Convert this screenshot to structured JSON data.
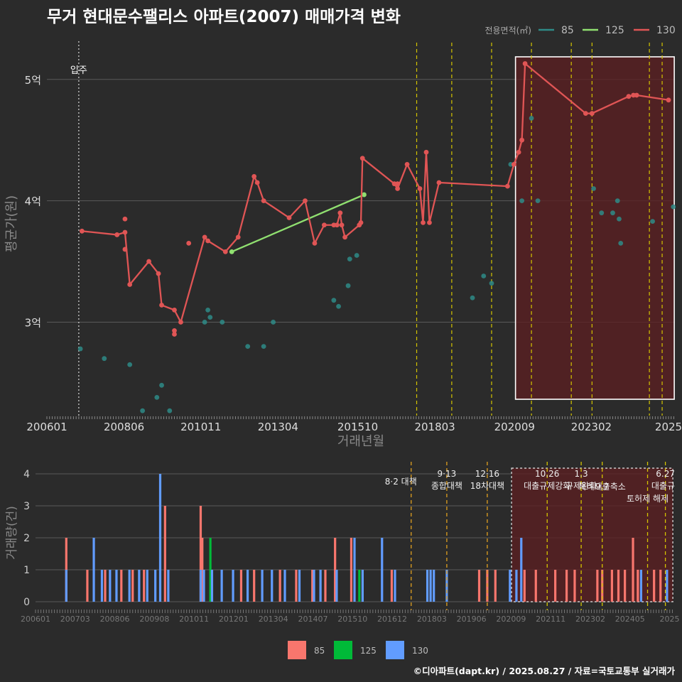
{
  "title": "무거 현대문수팰리스 아파트(2007) 매매가격 변화",
  "credit": "©디아파트(dapt.kr) / 2025.08.27 / 자료=국토교통부 실거래가",
  "colors": {
    "bg": "#2b2b2b",
    "grid": "#555555",
    "text": "#dddddd",
    "s85": "#2e8b87",
    "s125": "#90e070",
    "s130": "#e05555",
    "bar85": "#f8766d",
    "bar125": "#00ba38",
    "bar130": "#619cff",
    "policy": "#d4c400",
    "policy_lower": "#e0a020",
    "highlight": "#5a1f22"
  },
  "chart_data": [
    {
      "type": "line",
      "ylabel": "평균가(원)",
      "xlabel": "거래년월",
      "y_ticks": [
        {
          "value": 3,
          "label": "3억"
        },
        {
          "value": 4,
          "label": "4억"
        },
        {
          "value": 5,
          "label": "5억"
        }
      ],
      "ylim": [
        2.23,
        5.42
      ],
      "xlim": [
        2006.0,
        2025.7
      ],
      "x_ticks": [
        {
          "value": 2006.0,
          "label": "200601"
        },
        {
          "value": 2008.42,
          "label": "200806"
        },
        {
          "value": 2010.83,
          "label": "201011"
        },
        {
          "value": 2013.25,
          "label": "201304"
        },
        {
          "value": 2015.75,
          "label": "201510"
        },
        {
          "value": 2018.17,
          "label": "201803"
        },
        {
          "value": 2020.67,
          "label": "202009"
        },
        {
          "value": 2023.08,
          "label": "202302"
        },
        {
          "value": 2025.5,
          "label": "2025"
        }
      ],
      "legend": {
        "title": "전용면적(㎡)",
        "position": "top-right",
        "items": [
          {
            "name": "85",
            "color": "#2e8b87"
          },
          {
            "name": "125",
            "color": "#90e070"
          },
          {
            "name": "130",
            "color": "#e05555"
          }
        ]
      },
      "annotation": {
        "label": "입주",
        "x": 2007.0
      },
      "policy_lines": [
        2017.6,
        2018.7,
        2019.95,
        2021.2,
        2022.45,
        2023.1,
        2024.9,
        2025.3
      ],
      "highlight_range": [
        2020.7,
        2025.68
      ],
      "series": [
        {
          "name": "85",
          "mode": "markers",
          "color": "#2e8b87",
          "x": [
            2007.05,
            2007.8,
            2008.6,
            2009.0,
            2009.45,
            2009.6,
            2009.85,
            2010.95,
            2011.05,
            2011.12,
            2011.5,
            2012.3,
            2012.8,
            2013.1,
            2015.0,
            2015.15,
            2015.45,
            2015.5,
            2015.72,
            2020.55,
            2020.9,
            2019.35,
            2019.7,
            2019.95,
            2021.2,
            2021.4,
            2023.15,
            2023.4,
            2023.75,
            2023.9,
            2023.95,
            2024.0,
            2025.0,
            2025.65
          ],
          "y": [
            2.78,
            2.7,
            2.65,
            2.27,
            2.38,
            2.48,
            2.27,
            3.0,
            3.1,
            3.04,
            3.0,
            2.8,
            2.8,
            3.0,
            3.18,
            3.13,
            3.3,
            3.52,
            3.55,
            4.3,
            4.0,
            3.2,
            3.38,
            3.32,
            4.68,
            4.0,
            4.1,
            3.9,
            3.9,
            4.0,
            3.85,
            3.65,
            3.83,
            3.95
          ]
        },
        {
          "name": "125",
          "mode": "lines+markers",
          "color": "#90e070",
          "x": [
            2011.8,
            2015.95
          ],
          "y": [
            3.58,
            4.05
          ]
        },
        {
          "name": "130",
          "mode": "lines+markers",
          "color": "#e05555",
          "x": [
            2007.1,
            2008.2,
            2008.45,
            2008.6,
            2009.2,
            2009.5,
            2009.6,
            2010.0,
            2010.2,
            2010.95,
            2011.05,
            2011.6,
            2012.0,
            2012.5,
            2012.6,
            2012.8,
            2013.6,
            2014.1,
            2014.4,
            2014.7,
            2015.0,
            2015.1,
            2015.2,
            2015.25,
            2015.35,
            2015.8,
            2015.85,
            2015.9,
            2016.9,
            2017.0,
            2017.3,
            2017.7,
            2017.8,
            2017.9,
            2018.0,
            2018.3,
            2020.45,
            2020.65,
            2020.8,
            2020.9,
            2021.0,
            2022.9,
            2023.1,
            2024.25,
            2024.4,
            2024.5,
            2025.5
          ],
          "y": [
            3.75,
            3.72,
            3.74,
            3.31,
            3.5,
            3.4,
            3.14,
            3.1,
            3.0,
            3.7,
            3.67,
            3.58,
            3.7,
            4.2,
            4.15,
            4.0,
            3.86,
            4.0,
            3.65,
            3.8,
            3.8,
            3.8,
            3.9,
            3.8,
            3.7,
            3.8,
            3.82,
            4.35,
            4.14,
            4.1,
            4.3,
            4.1,
            3.82,
            4.4,
            3.82,
            4.15,
            4.12,
            4.3,
            4.4,
            4.5,
            5.13,
            4.72,
            4.72,
            4.86,
            4.87,
            4.87,
            4.83
          ]
        },
        {
          "name": "130b",
          "mode": "markers",
          "color": "#e05555",
          "x": [
            2008.45,
            2008.45,
            2010.0,
            2010.0,
            2010.45,
            2017.0
          ],
          "y": [
            3.85,
            3.6,
            2.9,
            2.93,
            3.65,
            4.14
          ]
        }
      ]
    },
    {
      "type": "bar",
      "ylabel": "거래량(건)",
      "ylim": [
        0,
        4.2
      ],
      "y_ticks": [
        0,
        1,
        2,
        3,
        4
      ],
      "legend": {
        "position": "bottom",
        "items": [
          {
            "name": "85",
            "color": "#f8766d"
          },
          {
            "name": "125",
            "color": "#00ba38"
          },
          {
            "name": "130",
            "color": "#619cff"
          }
        ]
      },
      "x_ticks": [
        "200601",
        "200703",
        "200806",
        "200908",
        "201011",
        "201201",
        "201304",
        "201407",
        "201510",
        "201612",
        "201803",
        "201906",
        "202009",
        "202111",
        "202302",
        "202405",
        "2025"
      ],
      "policies": [
        {
          "x": 2017.6,
          "lines": [
            "8·2 대책"
          ],
          "color": "#e0a020"
        },
        {
          "x": 2018.7,
          "lines": [
            "9·13",
            "종합대책"
          ],
          "color": "#e0a020"
        },
        {
          "x": 2019.95,
          "lines": [
            "12·16",
            "18차대책"
          ],
          "color": "#e0a020"
        },
        {
          "x": 2021.8,
          "lines": [
            "10.26",
            "대출규제강화"
          ],
          "color": "#d4c400"
        },
        {
          "x": 2022.85,
          "lines": [
            "1.3",
            "규제완화"
          ],
          "color": "#d4c400"
        },
        {
          "x": 2023.5,
          "lines": [
            "9.7",
            "특례대출축소"
          ],
          "color": "#d4c400"
        },
        {
          "x": 2024.9,
          "lines": [
            "토허제 해제"
          ],
          "color": "#d4c400"
        },
        {
          "x": 2025.45,
          "lines": [
            "6.27",
            "대출규"
          ],
          "color": "#d4c400"
        }
      ],
      "highlight_range": [
        2020.7,
        2025.68
      ],
      "series": [
        {
          "name": "85",
          "color": "#f8766d",
          "x": [
            2006.95,
            2007.6,
            2008.15,
            2008.65,
            2009.0,
            2009.35,
            2010.0,
            2011.1,
            2011.15,
            2012.35,
            2012.75,
            2013.55,
            2014.05,
            2014.55,
            2014.95,
            2015.25,
            2015.75,
            2017.0,
            2019.7,
            2019.95,
            2020.2,
            2021.1,
            2021.45,
            2022.05,
            2022.4,
            2022.65,
            2023.35,
            2023.5,
            2023.8,
            2024.0,
            2024.2,
            2024.45,
            2024.6,
            2025.1,
            2025.3
          ],
          "v": [
            2,
            1,
            1,
            1,
            1,
            1,
            3,
            3,
            2,
            1,
            1,
            1,
            1,
            1,
            1,
            2,
            2,
            1,
            1,
            1,
            1,
            1,
            1,
            1,
            1,
            1,
            1,
            1,
            1,
            1,
            1,
            2,
            1,
            1,
            1
          ]
        },
        {
          "name": "125",
          "color": "#00ba38",
          "x": [
            2011.4,
            2016.0
          ],
          "v": [
            2,
            1
          ]
        },
        {
          "name": "130",
          "color": "#619cff",
          "x": [
            2006.95,
            2007.8,
            2008.05,
            2008.3,
            2008.5,
            2008.9,
            2009.2,
            2009.45,
            2009.7,
            2009.85,
            2010.1,
            2011.1,
            2011.2,
            2011.45,
            2011.75,
            2012.1,
            2012.55,
            2013.0,
            2013.3,
            2013.7,
            2014.15,
            2014.6,
            2014.8,
            2015.3,
            2015.85,
            2016.1,
            2016.7,
            2017.1,
            2018.1,
            2018.2,
            2018.3,
            2018.7,
            2020.65,
            2020.85,
            2021.0,
            2024.7,
            2025.5
          ],
          "v": [
            1,
            2,
            1,
            1,
            1,
            1,
            1,
            1,
            1,
            4,
            1,
            1,
            1,
            1,
            1,
            1,
            1,
            1,
            1,
            1,
            1,
            1,
            1,
            1,
            2,
            1,
            2,
            1,
            1,
            1,
            1,
            1,
            1,
            1,
            2,
            1,
            1
          ]
        }
      ]
    }
  ]
}
